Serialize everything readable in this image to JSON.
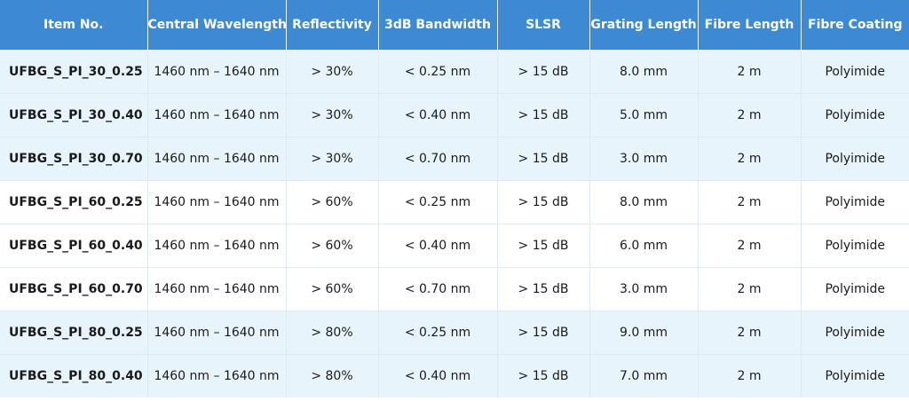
{
  "table": {
    "headers": [
      "Item No.",
      "Central Wavelength",
      "Reflectivity",
      "3dB Bandwidth",
      "SLSR",
      "Grating Length",
      "Fibre Length",
      "Fibre Coating"
    ],
    "rows": [
      [
        "UFBG_S_PI_30_0.25",
        "1460 nm – 1640 nm",
        "> 30%",
        "< 0.25 nm",
        "> 15 dB",
        "8.0 mm",
        "2 m",
        "Polyimide"
      ],
      [
        "UFBG_S_PI_30_0.40",
        "1460 nm – 1640 nm",
        "> 30%",
        "< 0.40 nm",
        "> 15 dB",
        "5.0 mm",
        "2 m",
        "Polyimide"
      ],
      [
        "UFBG_S_PI_30_0.70",
        "1460 nm – 1640 nm",
        "> 30%",
        "< 0.70 nm",
        "> 15 dB",
        "3.0 mm",
        "2 m",
        "Polyimide"
      ],
      [
        "UFBG_S_PI_60_0.25",
        "1460 nm – 1640 nm",
        "> 60%",
        "< 0.25 nm",
        "> 15 dB",
        "8.0 mm",
        "2 m",
        "Polyimide"
      ],
      [
        "UFBG_S_PI_60_0.40",
        "1460 nm – 1640 nm",
        "> 60%",
        "< 0.40 nm",
        "> 15 dB",
        "6.0 mm",
        "2 m",
        "Polyimide"
      ],
      [
        "UFBG_S_PI_60_0.70",
        "1460 nm – 1640 nm",
        "> 60%",
        "< 0.70 nm",
        "> 15 dB",
        "3.0 mm",
        "2 m",
        "Polyimide"
      ],
      [
        "UFBG_S_PI_80_0.25",
        "1460 nm – 1640 nm",
        "> 80%",
        "< 0.25 nm",
        "> 15 dB",
        "9.0 mm",
        "2 m",
        "Polyimide"
      ],
      [
        "UFBG_S_PI_80_0.40",
        "1460 nm – 1640 nm",
        "> 80%",
        "< 0.40 nm",
        "> 15 dB",
        "7.0 mm",
        "2 m",
        "Polyimide"
      ]
    ]
  },
  "colors": {
    "header_bg": "#3d8ad2",
    "header_text": "#ffffff",
    "row_shaded": "#e8f4fc",
    "row_plain": "#ffffff"
  }
}
